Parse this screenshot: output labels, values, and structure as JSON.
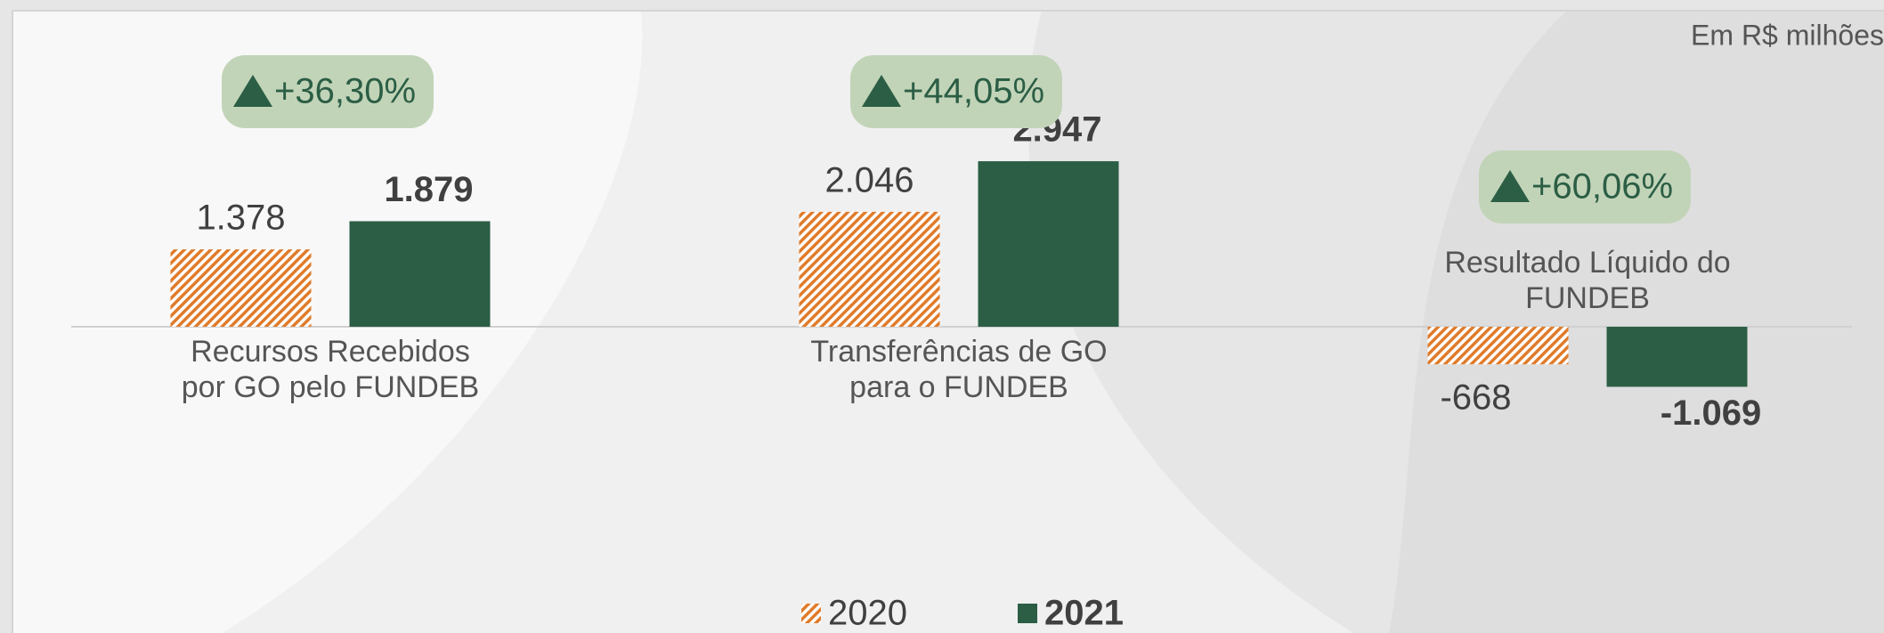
{
  "chart_data": {
    "type": "bar",
    "subtitle": "Em R$ milhões",
    "categories": [
      "Recursos Recebidos por GO pelo FUNDEB",
      "Transferências de GO para o FUNDEB",
      "Resultado Líquido do FUNDEB"
    ],
    "series": [
      {
        "name": "2020",
        "color": "#e07b2a",
        "pattern": "hatch",
        "values": [
          1378,
          2046,
          -668
        ],
        "value_labels": [
          "1.378",
          "2.046",
          "-668"
        ]
      },
      {
        "name": "2021",
        "color": "#2b5e45",
        "values": [
          1879,
          2947,
          -1069
        ],
        "value_labels": [
          "1.879",
          "2.947",
          "-1.069"
        ]
      }
    ],
    "annotations": [
      "+36,30%",
      "+44,05%",
      "+60,06%"
    ],
    "ylim": [
      -2000,
      3500
    ]
  }
}
